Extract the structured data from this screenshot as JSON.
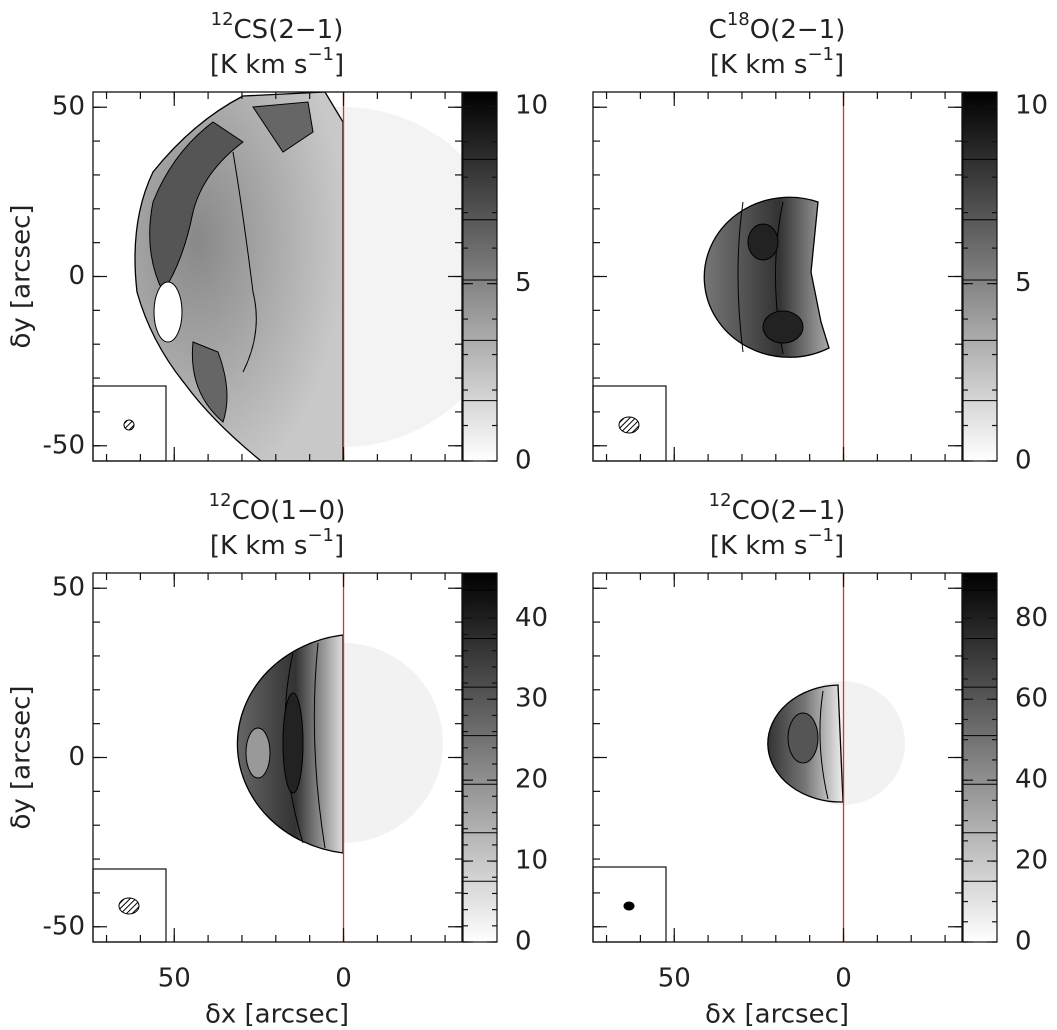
{
  "chart_data": [
    {
      "type": "image",
      "title": [
        {
          "text": "12",
          "sup": true
        },
        {
          "text": "CS(2−1)"
        }
      ],
      "units": [
        {
          "text": "[K km s"
        },
        {
          "text": "−1",
          "sup": true
        },
        {
          "text": "]"
        }
      ],
      "ylabel": "δy [arcsec]",
      "xlim": [
        74,
        -35
      ],
      "ylim": [
        -54.5,
        54.5
      ],
      "xticks": [
        50,
        0
      ],
      "yticks": [
        50,
        0,
        -50
      ],
      "xminor": 10,
      "yminor": 10,
      "tick_labels": {
        "x": false,
        "y": true
      },
      "vline": 0,
      "vline_color": "#e0301e",
      "colorbar": {
        "lim": [
          0,
          10.4
        ],
        "ticks": [
          0,
          5,
          10
        ],
        "minor": 1,
        "levels": [
          1.7,
          3.4,
          5.1,
          6.8,
          8.5
        ]
      }
    },
    {
      "type": "image",
      "title": [
        {
          "text": "C"
        },
        {
          "text": "18",
          "sup": true
        },
        {
          "text": "O(2−1)"
        }
      ],
      "units": [
        {
          "text": "[K km s"
        },
        {
          "text": "−1",
          "sup": true
        },
        {
          "text": "]"
        }
      ],
      "xlim": [
        74,
        -35
      ],
      "ylim": [
        -54.5,
        54.5
      ],
      "xticks": [
        50,
        0
      ],
      "yticks": [
        50,
        0,
        -50
      ],
      "xminor": 10,
      "yminor": 10,
      "tick_labels": {
        "x": false,
        "y": false
      },
      "vline": 0,
      "vline_color": "#e0301e",
      "colorbar": {
        "lim": [
          0,
          10.4
        ],
        "ticks": [
          0,
          5,
          10
        ],
        "minor": 1,
        "levels": [
          1.7,
          3.4,
          5.1,
          6.8,
          8.5
        ]
      }
    },
    {
      "type": "image",
      "title": [
        {
          "text": "12",
          "sup": true
        },
        {
          "text": "CO(1−0)"
        }
      ],
      "units": [
        {
          "text": "[K km s"
        },
        {
          "text": "−1",
          "sup": true
        },
        {
          "text": "]"
        }
      ],
      "xlabel": "δx [arcsec]",
      "ylabel": "δy [arcsec]",
      "xlim": [
        74,
        -35
      ],
      "ylim": [
        -54.5,
        54.5
      ],
      "xticks": [
        50,
        0
      ],
      "yticks": [
        50,
        0,
        -50
      ],
      "xminor": 10,
      "yminor": 10,
      "tick_labels": {
        "x": true,
        "y": true
      },
      "vline": 0,
      "vline_color": "#e0301e",
      "colorbar": {
        "lim": [
          0,
          45.6
        ],
        "ticks": [
          0,
          10,
          20,
          30,
          40
        ],
        "minor": 2,
        "levels": [
          7.5,
          13.5,
          19.5,
          25.5,
          31.5,
          37.5,
          43.5
        ]
      }
    },
    {
      "type": "image",
      "title": [
        {
          "text": "12",
          "sup": true
        },
        {
          "text": "CO(2−1)"
        }
      ],
      "units": [
        {
          "text": "[K km s"
        },
        {
          "text": "−1",
          "sup": true
        },
        {
          "text": "]"
        }
      ],
      "xlabel": "δx [arcsec]",
      "xlim": [
        74,
        -35
      ],
      "ylim": [
        -54.5,
        54.5
      ],
      "xticks": [
        50,
        0
      ],
      "yticks": [
        50,
        0,
        -50
      ],
      "xminor": 10,
      "yminor": 10,
      "tick_labels": {
        "x": true,
        "y": false
      },
      "vline": 0,
      "vline_color": "#e0301e",
      "colorbar": {
        "lim": [
          0,
          91.2
        ],
        "ticks": [
          0,
          20,
          40,
          60,
          80
        ],
        "minor": 5,
        "levels": [
          15,
          27,
          39,
          51,
          63,
          75,
          87
        ]
      }
    }
  ]
}
